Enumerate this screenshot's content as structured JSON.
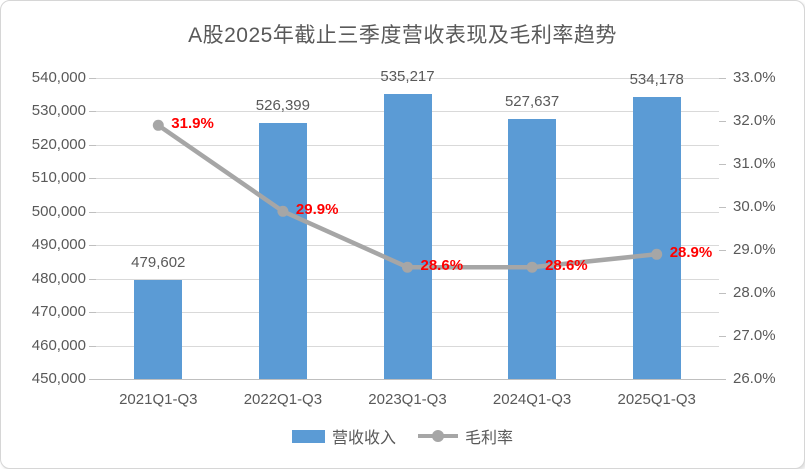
{
  "title": "A股2025年截止三季度营收表现及毛利率趋势",
  "colors": {
    "bar": "#5b9bd5",
    "line": "#a6a6a6",
    "line_label": "#ff0000",
    "bar_label": "#595959",
    "axis_text": "#595959",
    "grid": "#d9d9d9"
  },
  "chart_data": {
    "type": "bar+line combo",
    "title": "A股2025年截止三季度营收表现及毛利率趋势",
    "categories": [
      "2021Q1-Q3",
      "2022Q1-Q3",
      "2023Q1-Q3",
      "2024Q1-Q3",
      "2025Q1-Q3"
    ],
    "series": [
      {
        "name": "营收收入",
        "chart_type": "bar",
        "axis": "left",
        "values": [
          479602,
          526399,
          535217,
          527637,
          534178
        ],
        "data_labels": [
          "479,602",
          "526,399",
          "535,217",
          "527,637",
          "534,178"
        ]
      },
      {
        "name": "毛利率",
        "chart_type": "line",
        "axis": "right",
        "values": [
          31.9,
          29.9,
          28.6,
          28.6,
          28.9
        ],
        "data_labels": [
          "31.9%",
          "29.9%",
          "28.6%",
          "28.6%",
          "28.9%"
        ]
      }
    ],
    "left_axis": {
      "min": 450000,
      "max": 540000,
      "step": 10000,
      "tick_labels": [
        "540,000",
        "530,000",
        "520,000",
        "510,000",
        "500,000",
        "490,000",
        "480,000",
        "470,000",
        "460,000",
        "450,000"
      ]
    },
    "right_axis": {
      "min": 26.0,
      "max": 33.0,
      "step": 1.0,
      "tick_labels": [
        "33.0%",
        "32.0%",
        "31.0%",
        "30.0%",
        "29.0%",
        "28.0%",
        "27.0%",
        "26.0%"
      ]
    },
    "grid": true,
    "legend_position": "bottom"
  }
}
